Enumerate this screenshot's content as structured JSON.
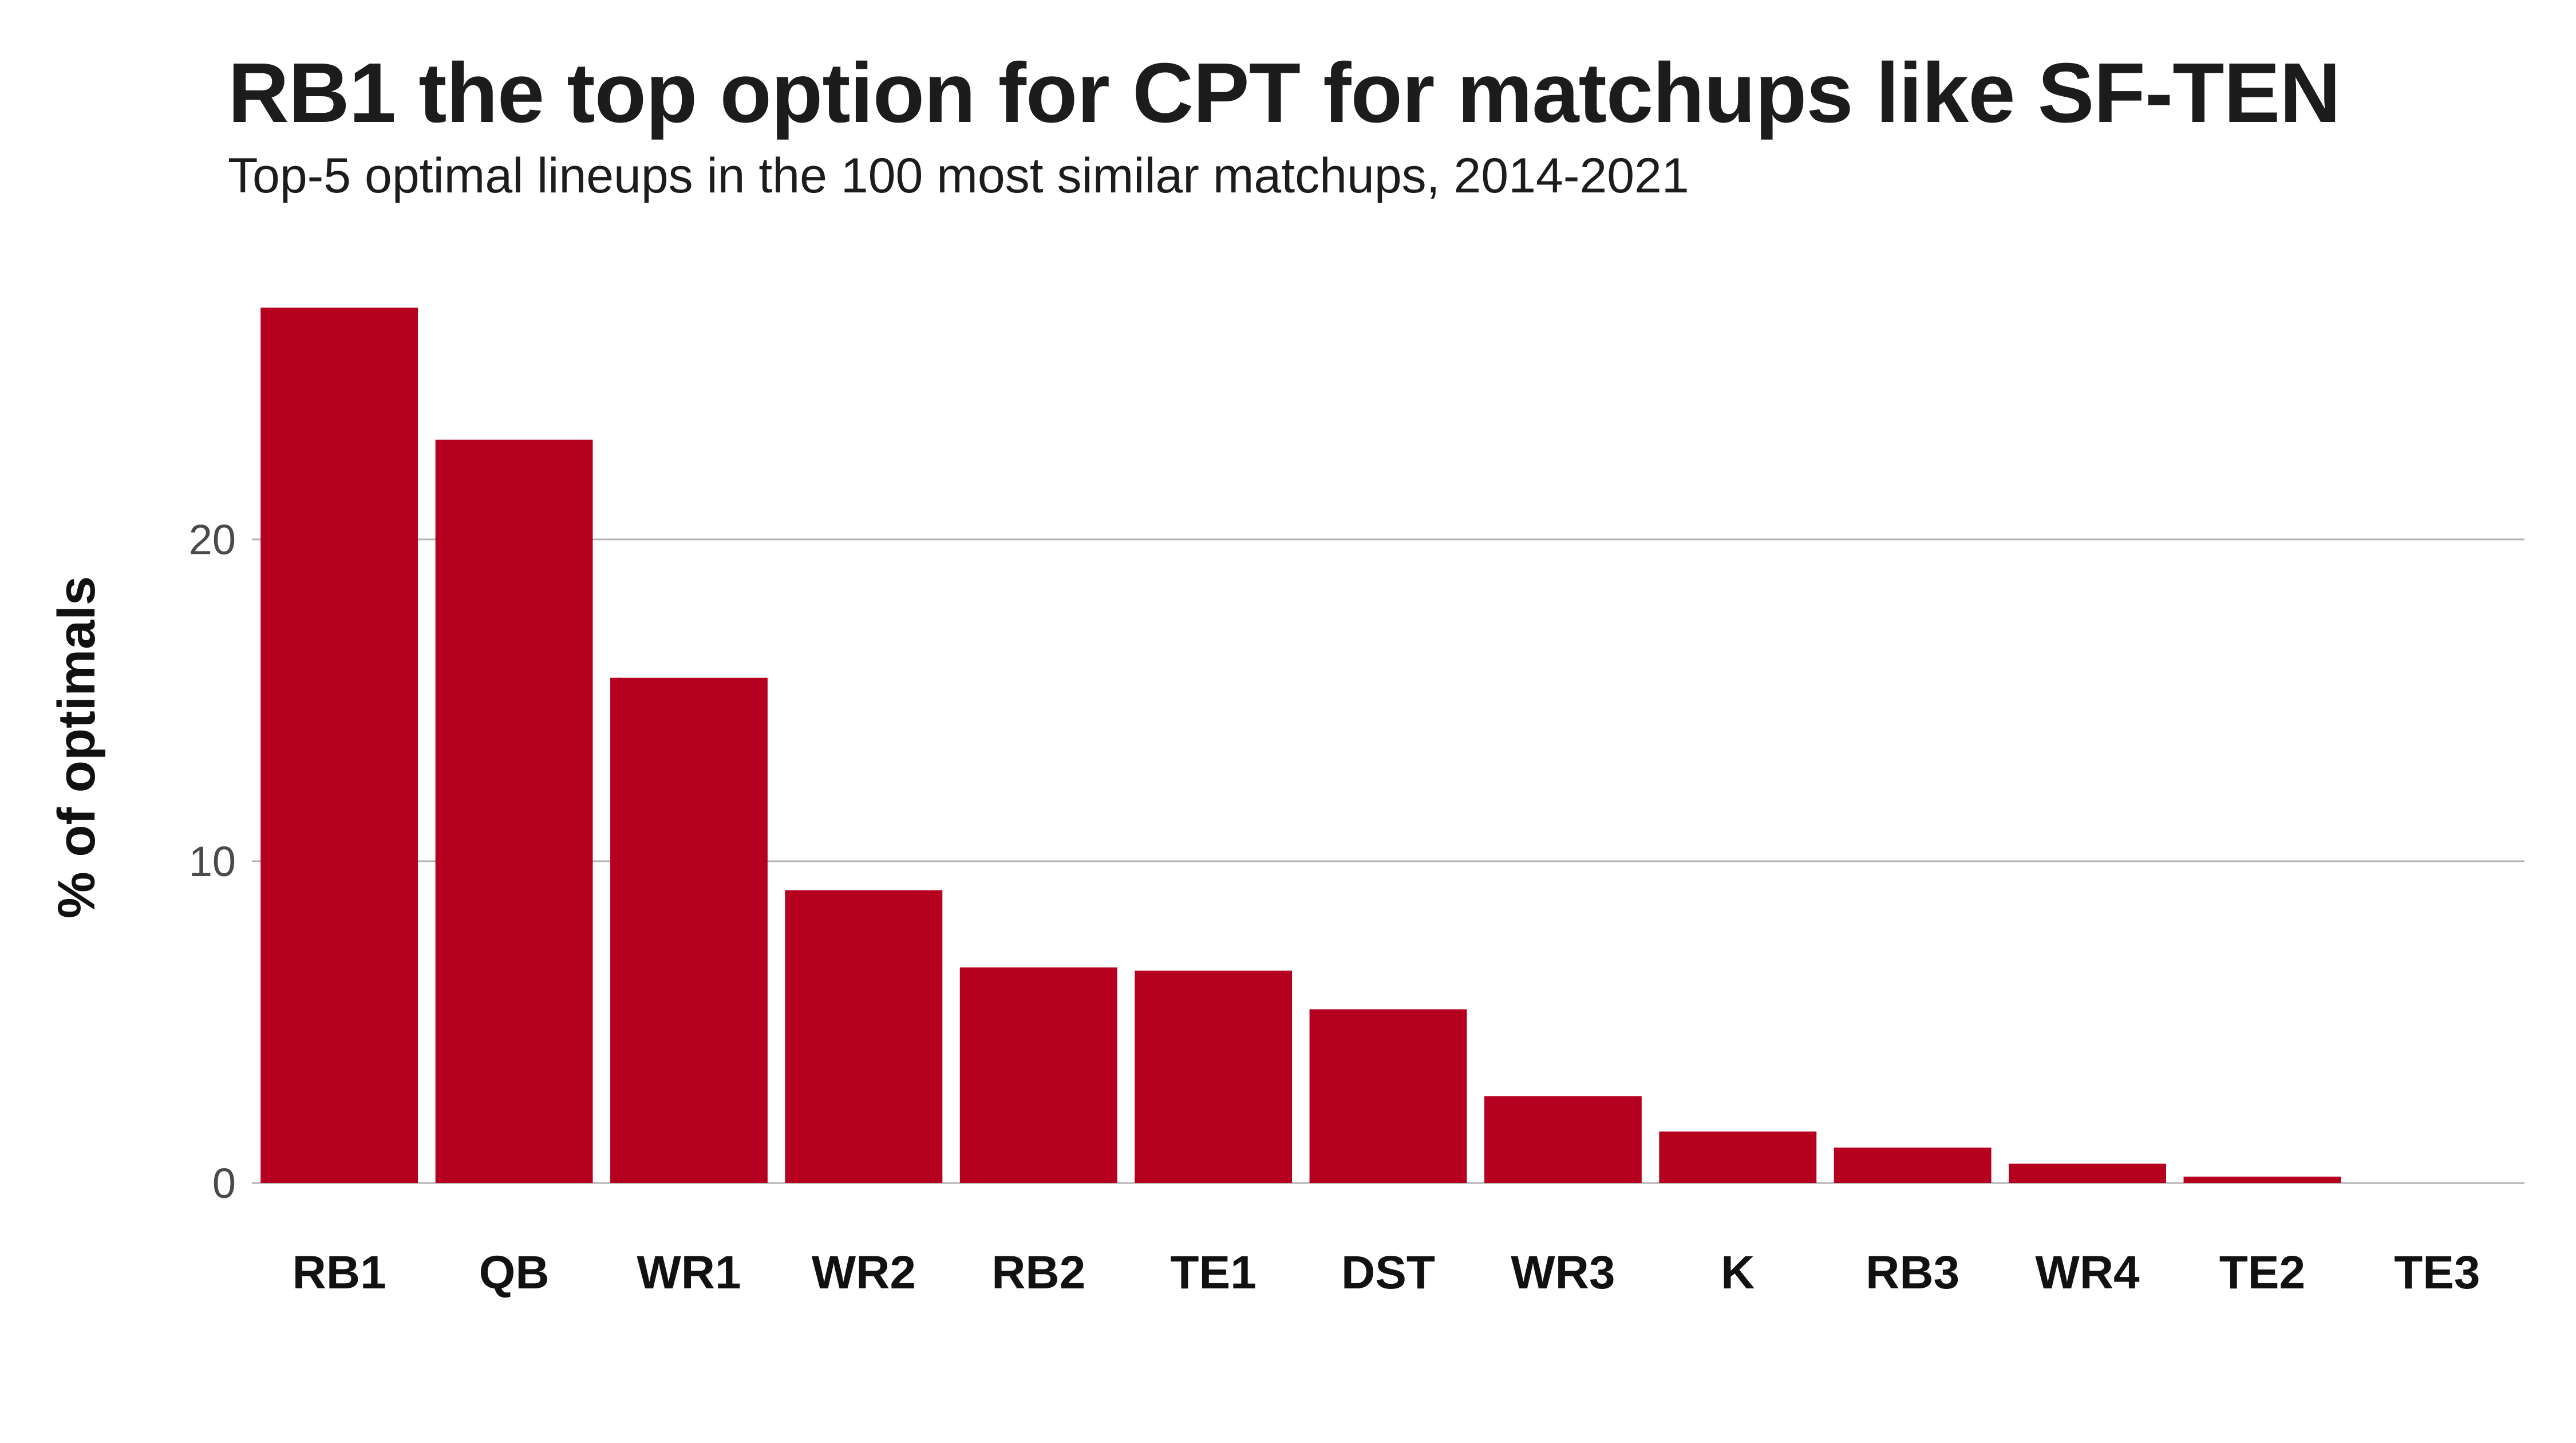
{
  "chart_data": {
    "type": "bar",
    "title": "RB1 the top option for CPT for matchups like SF-TEN",
    "subtitle": "Top-5 optimal lineups in the 100 most similar matchups, 2014-2021",
    "xlabel": "",
    "ylabel": "% of optimals",
    "categories": [
      "RB1",
      "QB",
      "WR1",
      "WR2",
      "RB2",
      "TE1",
      "DST",
      "WR3",
      "K",
      "RB3",
      "WR4",
      "TE2",
      "TE3"
    ],
    "values": [
      27.2,
      23.1,
      15.7,
      9.1,
      6.7,
      6.6,
      5.4,
      2.7,
      1.6,
      1.1,
      0.6,
      0.2,
      0.0
    ],
    "yticks": [
      0,
      10,
      20
    ],
    "ytick_labels": [
      "0",
      "10",
      "20"
    ],
    "ylim": [
      0,
      28
    ],
    "grid": true,
    "bar_color": "#b5001f",
    "gridline_color": "#b3b3b3"
  }
}
